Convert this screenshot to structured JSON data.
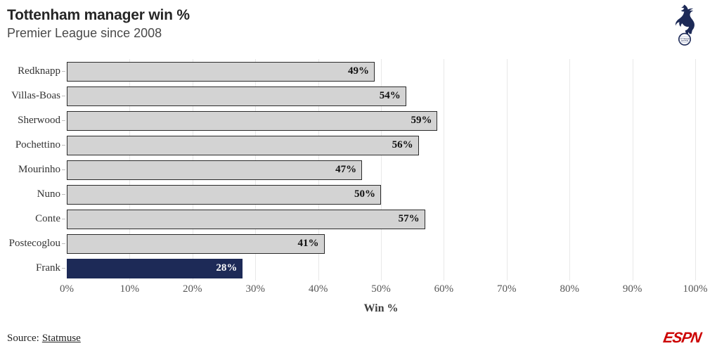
{
  "header": {
    "title": "Tottenham manager win %",
    "subtitle": "Premier League since 2008"
  },
  "badge": {
    "line1": "TOTTENHAM",
    "line2": "HOTSPUR"
  },
  "chart_data": {
    "type": "bar",
    "orientation": "horizontal",
    "title": "Tottenham manager win %",
    "subtitle": "Premier League since 2008",
    "categories": [
      "Redknapp",
      "Villas-Boas",
      "Sherwood",
      "Pochettino",
      "Mourinho",
      "Nuno",
      "Conte",
      "Postecoglou",
      "Frank"
    ],
    "values": [
      49,
      54,
      59,
      56,
      47,
      50,
      57,
      41,
      28
    ],
    "value_suffix": "%",
    "xlabel": "Win %",
    "xlim": [
      0,
      100
    ],
    "xticks": [
      0,
      10,
      20,
      30,
      40,
      50,
      60,
      70,
      80,
      90,
      100
    ],
    "xtick_labels": [
      "0%",
      "10%",
      "20%",
      "30%",
      "40%",
      "50%",
      "60%",
      "70%",
      "80%",
      "90%",
      "100%"
    ],
    "grid": "vertical-light",
    "legend_position": "none",
    "highlight_index": 8,
    "colors": {
      "bar_fill": "#d3d3d3",
      "bar_border": "#2b2b2b",
      "highlight_fill": "#1d2a57",
      "highlight_border": "#1d2a57",
      "value_label": "#111111",
      "highlight_value_label": "#ffffff",
      "gridline": "#e8e8e8",
      "accent_navy": "#1d2a57",
      "espn_red": "#cc0000"
    }
  },
  "footer": {
    "source_prefix": "Source:",
    "source_link": "Statmuse",
    "network_logo": "ESPN"
  }
}
